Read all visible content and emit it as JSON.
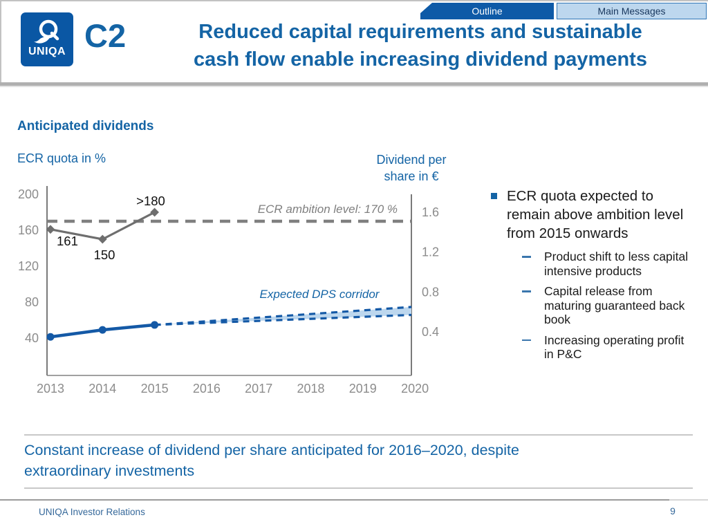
{
  "header": {
    "logo_text": "UNIQA",
    "section_code": "C2",
    "title_line1": "Reduced capital requirements and sustainable",
    "title_line2": "cash flow enable increasing dividend payments",
    "tabs": [
      {
        "label": "Outline",
        "active": true
      },
      {
        "label": "Main Messages",
        "active": false
      }
    ]
  },
  "content": {
    "section_heading": "Anticipated dividends",
    "left_axis_title": "ECR quota in %",
    "right_axis_title_line1": "Dividend per",
    "right_axis_title_line2": "share in €"
  },
  "chart_data": {
    "type": "line",
    "title": "Anticipated dividends",
    "x_categories": [
      2013,
      2014,
      2015,
      2016,
      2017,
      2018,
      2019,
      2020
    ],
    "left_axis": {
      "label": "ECR quota in %",
      "ticks": [
        "200",
        "160",
        "120",
        "80",
        "40"
      ],
      "range": [
        0,
        215
      ]
    },
    "right_axis": {
      "label": "Dividend per share in €",
      "ticks": [
        "1.6",
        "1.2",
        "0.8",
        "0.4"
      ],
      "range": [
        0,
        1.95
      ]
    },
    "grid": false,
    "ecr_series": {
      "name": "ECR quota in %",
      "years": [
        2013,
        2014,
        2015
      ],
      "values": [
        161,
        150,
        180
      ],
      "point_labels": [
        "161",
        "150",
        ">180"
      ]
    },
    "ambition": {
      "value": 170,
      "label": "ECR ambition level: 170 %"
    },
    "dps_series": {
      "name": "Dividend per share in €",
      "years": [
        2013,
        2014,
        2015
      ],
      "values": [
        0.35,
        0.42,
        0.47
      ]
    },
    "dps_corridor": {
      "label": "Expected DPS corridor",
      "start_year": 2015,
      "start_value": 0.47,
      "end_year": 2020,
      "upper_end": 0.65,
      "lower_end": 0.57
    }
  },
  "bullets": {
    "main": "ECR quota expected to remain above ambition level from 2015 onwards",
    "sub": [
      "Product shift to less capital intensive products",
      "Capital release from maturing guaranteed back book",
      "Increasing operating profit in P&C"
    ]
  },
  "message": {
    "line1": "Constant increase of dividend per share anticipated for 2016–2020, despite",
    "line2": "extraordinary investments"
  },
  "footer": {
    "left": "UNIQA Investor Relations",
    "page": "9"
  },
  "colors": {
    "brand_blue": "#0a57a4",
    "title_blue": "#1464a5",
    "tab_active_bg": "#0e5aa7",
    "tab_active_text": "#ffffff",
    "tab_inactive_bg": "#bdd7ee",
    "tab_inactive_border": "#2e75b6",
    "tab_inactive_text": "#17365d",
    "axis_text": "#8c8c8c",
    "axis_line": "#595959",
    "ecr_gray": "#6e6e6e",
    "ambition_gray": "#7f7f7f",
    "dps_blue": "#1459a6",
    "corridor_fill": "#bdd7ee",
    "body_text": "#1a1a1a",
    "sub_dash_blue": "#3a76ad",
    "footer_blue": "#35689a",
    "divider_gray": "#b0b0b0",
    "point_label_black": "#111111"
  }
}
